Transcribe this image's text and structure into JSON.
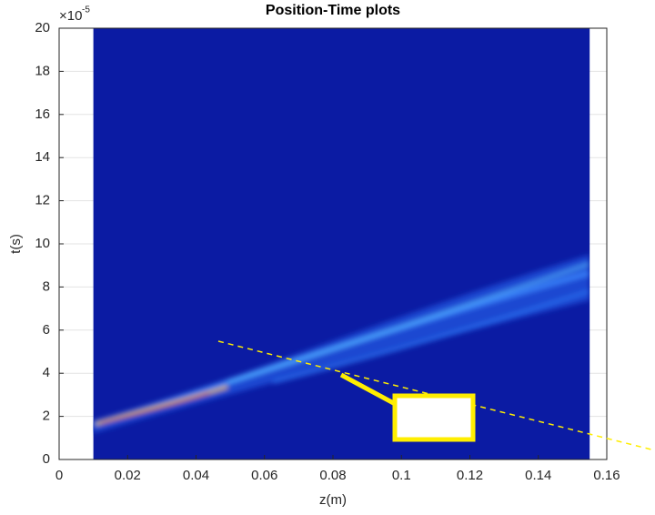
{
  "chart_data": {
    "type": "image",
    "title": "Position-Time plots",
    "x_label": "z(m)",
    "y_label": "t(s)",
    "y_multiplier": {
      "base": "×10",
      "exponent": "-5"
    },
    "xlim": [
      0,
      0.16
    ],
    "ylim": [
      0,
      20
    ],
    "xticks": [
      0,
      0.02,
      0.04,
      0.06,
      0.08,
      0.1,
      0.12,
      0.14,
      0.16
    ],
    "yticks": [
      0,
      2,
      4,
      6,
      8,
      10,
      12,
      14,
      16,
      18,
      20
    ],
    "image_xlim": [
      0.01,
      0.155
    ],
    "image_ylim": [
      0,
      20
    ],
    "color": "#0b1ba3",
    "grid": true
  }
}
